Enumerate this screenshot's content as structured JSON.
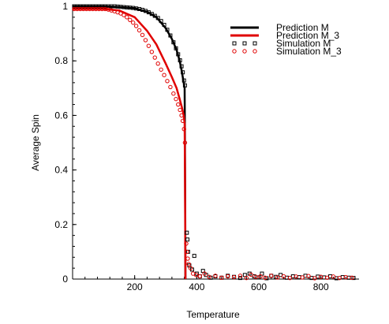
{
  "chart_data": {
    "type": "line",
    "title": "",
    "xlabel": "Temperature",
    "ylabel": "Average Spin",
    "xlim": [
      0,
      910
    ],
    "ylim": [
      0,
      1
    ],
    "grid": false,
    "legend_position": "top-right",
    "x_ticks": [
      {
        "value": 200,
        "label": "200"
      },
      {
        "value": 400,
        "label": "400"
      },
      {
        "value": 600,
        "label": "600"
      },
      {
        "value": 800,
        "label": "800"
      }
    ],
    "y_ticks": [
      {
        "value": 0,
        "label": "0"
      },
      {
        "value": 0.2,
        "label": "0.2"
      },
      {
        "value": 0.4,
        "label": "0.4"
      },
      {
        "value": 0.6,
        "label": "0.6"
      },
      {
        "value": 0.8,
        "label": "0.8"
      },
      {
        "value": 1,
        "label": "1"
      }
    ],
    "series": [
      {
        "name": "Prediction M",
        "style": "line",
        "color": "#000000",
        "points": [
          [
            0,
            1
          ],
          [
            100,
            1
          ],
          [
            150,
            0.998
          ],
          [
            200,
            0.993
          ],
          [
            240,
            0.98
          ],
          [
            270,
            0.96
          ],
          [
            300,
            0.92
          ],
          [
            320,
            0.88
          ],
          [
            335,
            0.84
          ],
          [
            345,
            0.8
          ],
          [
            352,
            0.76
          ],
          [
            358,
            0.72
          ],
          [
            361,
            0.7
          ],
          [
            362,
            0.5
          ],
          [
            363,
            0.2
          ],
          [
            363.5,
            0
          ]
        ]
      },
      {
        "name": "Prediction M_3",
        "style": "line",
        "color": "#e00000",
        "points": [
          [
            0,
            0.99
          ],
          [
            100,
            0.99
          ],
          [
            150,
            0.985
          ],
          [
            200,
            0.96
          ],
          [
            240,
            0.91
          ],
          [
            270,
            0.86
          ],
          [
            300,
            0.79
          ],
          [
            320,
            0.74
          ],
          [
            335,
            0.7
          ],
          [
            345,
            0.66
          ],
          [
            352,
            0.63
          ],
          [
            358,
            0.6
          ],
          [
            361,
            0.57
          ],
          [
            362,
            0.4
          ],
          [
            363,
            0.15
          ],
          [
            363.5,
            0
          ]
        ]
      },
      {
        "name": "Simulation M",
        "style": "marker",
        "marker": "square",
        "color": "#000000",
        "points": [
          [
            5,
            1
          ],
          [
            15,
            1
          ],
          [
            25,
            1
          ],
          [
            35,
            1
          ],
          [
            45,
            1
          ],
          [
            55,
            1
          ],
          [
            65,
            1
          ],
          [
            75,
            1
          ],
          [
            85,
            1
          ],
          [
            95,
            1
          ],
          [
            105,
            1
          ],
          [
            115,
            1
          ],
          [
            125,
            1
          ],
          [
            135,
            1
          ],
          [
            145,
            0.999
          ],
          [
            155,
            0.998
          ],
          [
            165,
            0.997
          ],
          [
            175,
            0.996
          ],
          [
            185,
            0.995
          ],
          [
            195,
            0.994
          ],
          [
            205,
            0.992
          ],
          [
            215,
            0.99
          ],
          [
            225,
            0.987
          ],
          [
            235,
            0.983
          ],
          [
            245,
            0.978
          ],
          [
            255,
            0.972
          ],
          [
            265,
            0.965
          ],
          [
            275,
            0.957
          ],
          [
            285,
            0.946
          ],
          [
            295,
            0.932
          ],
          [
            305,
            0.914
          ],
          [
            315,
            0.893
          ],
          [
            325,
            0.868
          ],
          [
            333,
            0.846
          ],
          [
            340,
            0.824
          ],
          [
            346,
            0.802
          ],
          [
            351,
            0.78
          ],
          [
            355,
            0.758
          ],
          [
            359,
            0.728
          ],
          [
            362,
            0.71
          ],
          [
            368,
            0.17
          ],
          [
            370,
            0.145
          ],
          [
            372,
            0.1
          ],
          [
            376,
            0.05
          ],
          [
            385,
            0.035
          ],
          [
            392,
            0.085
          ],
          [
            400,
            0.02
          ],
          [
            410,
            0.01
          ],
          [
            420,
            0.03
          ],
          [
            430,
            0.015
          ],
          [
            445,
            0.005
          ],
          [
            460,
            0.01
          ],
          [
            480,
            0.005
          ],
          [
            500,
            0.012
          ],
          [
            520,
            0.008
          ],
          [
            540,
            0.004
          ],
          [
            555,
            0.015
          ],
          [
            570,
            0.02
          ],
          [
            585,
            0.01
          ],
          [
            600,
            0.006
          ],
          [
            610,
            0.02
          ],
          [
            625,
            0.003
          ],
          [
            640,
            0.012
          ],
          [
            655,
            0.008
          ],
          [
            670,
            0.015
          ],
          [
            690,
            0.005
          ],
          [
            710,
            0.01
          ],
          [
            730,
            0.007
          ],
          [
            750,
            0.012
          ],
          [
            770,
            0.004
          ],
          [
            790,
            0.009
          ],
          [
            810,
            0.006
          ],
          [
            830,
            0.01
          ],
          [
            850,
            0.003
          ],
          [
            870,
            0.007
          ],
          [
            890,
            0.005
          ],
          [
            905,
            0.004
          ]
        ]
      },
      {
        "name": "Simulation M_3",
        "style": "marker",
        "marker": "circle",
        "color": "#e00000",
        "points": [
          [
            5,
            0.99
          ],
          [
            15,
            0.99
          ],
          [
            25,
            0.99
          ],
          [
            35,
            0.99
          ],
          [
            45,
            0.99
          ],
          [
            55,
            0.99
          ],
          [
            65,
            0.99
          ],
          [
            75,
            0.99
          ],
          [
            85,
            0.99
          ],
          [
            95,
            0.99
          ],
          [
            105,
            0.99
          ],
          [
            115,
            0.988
          ],
          [
            125,
            0.985
          ],
          [
            135,
            0.982
          ],
          [
            145,
            0.978
          ],
          [
            155,
            0.974
          ],
          [
            165,
            0.968
          ],
          [
            175,
            0.96
          ],
          [
            185,
            0.95
          ],
          [
            195,
            0.94
          ],
          [
            205,
            0.928
          ],
          [
            215,
            0.912
          ],
          [
            225,
            0.895
          ],
          [
            235,
            0.876
          ],
          [
            245,
            0.855
          ],
          [
            255,
            0.833
          ],
          [
            265,
            0.812
          ],
          [
            275,
            0.79
          ],
          [
            285,
            0.768
          ],
          [
            295,
            0.748
          ],
          [
            305,
            0.726
          ],
          [
            315,
            0.704
          ],
          [
            325,
            0.68
          ],
          [
            333,
            0.66
          ],
          [
            340,
            0.64
          ],
          [
            346,
            0.62
          ],
          [
            351,
            0.6
          ],
          [
            355,
            0.58
          ],
          [
            359,
            0.55
          ],
          [
            362,
            0.5
          ],
          [
            366,
            0.13
          ],
          [
            368,
            0.1
          ],
          [
            371,
            0.075
          ],
          [
            374,
            0.055
          ],
          [
            380,
            0.04
          ],
          [
            388,
            0.02
          ],
          [
            398,
            0.015
          ],
          [
            410,
            0.01
          ],
          [
            425,
            0.02
          ],
          [
            440,
            0.008
          ],
          [
            460,
            0.012
          ],
          [
            480,
            0.005
          ],
          [
            500,
            0.01
          ],
          [
            520,
            0.007
          ],
          [
            540,
            0.012
          ],
          [
            560,
            0.004
          ],
          [
            575,
            0.016
          ],
          [
            590,
            0.008
          ],
          [
            605,
            0.01
          ],
          [
            620,
            0.005
          ],
          [
            640,
            0.012
          ],
          [
            660,
            0.006
          ],
          [
            680,
            0.01
          ],
          [
            700,
            0.004
          ],
          [
            720,
            0.009
          ],
          [
            740,
            0.006
          ],
          [
            760,
            0.011
          ],
          [
            780,
            0.003
          ],
          [
            800,
            0.008
          ],
          [
            820,
            0.005
          ],
          [
            840,
            0.009
          ],
          [
            860,
            0.004
          ],
          [
            880,
            0.007
          ],
          [
            900,
            0.005
          ]
        ]
      }
    ]
  }
}
